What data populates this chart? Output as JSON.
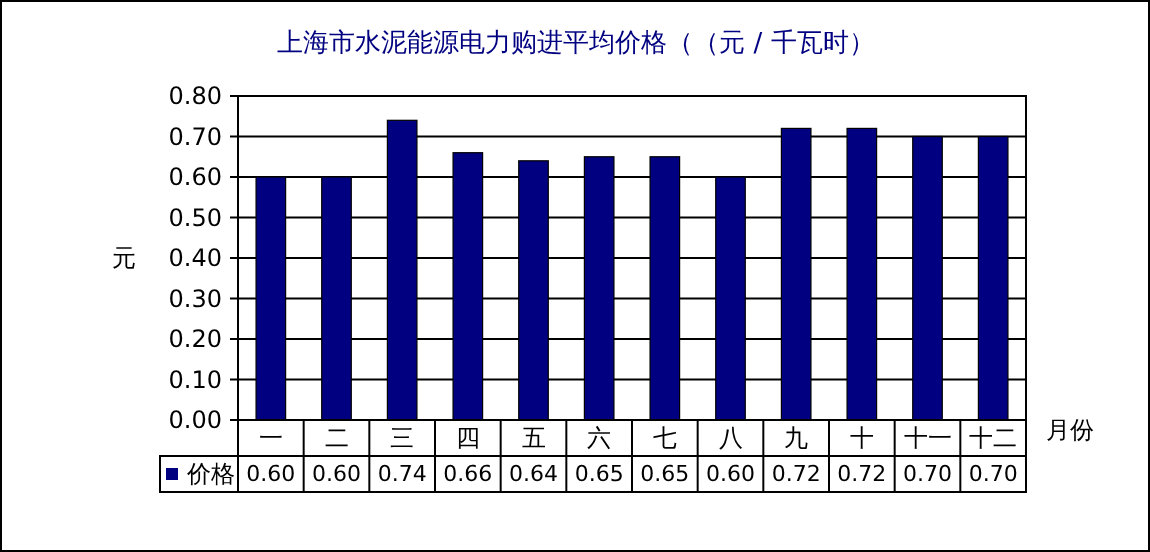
{
  "chart_data": {
    "type": "bar",
    "title": "上海市水泥能源电力购进平均价格（（元 / 千瓦时）",
    "xlabel": "月份",
    "ylabel": "元",
    "categories": [
      "一",
      "二",
      "三",
      "四",
      "五",
      "六",
      "七",
      "八",
      "九",
      "十",
      "十一",
      "十二"
    ],
    "series": [
      {
        "name": "价格",
        "color": "#000080",
        "values": [
          0.6,
          0.6,
          0.74,
          0.66,
          0.64,
          0.65,
          0.65,
          0.6,
          0.72,
          0.72,
          0.7,
          0.7
        ],
        "value_labels": [
          "0.60",
          "0.60",
          "0.74",
          "0.66",
          "0.64",
          "0.65",
          "0.65",
          "0.60",
          "0.72",
          "0.72",
          "0.70",
          "0.70"
        ]
      }
    ],
    "ylim": [
      0,
      0.8
    ],
    "yticks": [
      {
        "value": 0,
        "label": "0.00"
      },
      {
        "value": 0.1,
        "label": "0.10"
      },
      {
        "value": 0.2,
        "label": "0.20"
      },
      {
        "value": 0.3,
        "label": "0.30"
      },
      {
        "value": 0.4,
        "label": "0.40"
      },
      {
        "value": 0.5,
        "label": "0.50"
      },
      {
        "value": 0.6,
        "label": "0.60"
      },
      {
        "value": 0.7,
        "label": "0.70"
      },
      {
        "value": 0.8,
        "label": "0.80"
      }
    ],
    "grid": "y"
  }
}
